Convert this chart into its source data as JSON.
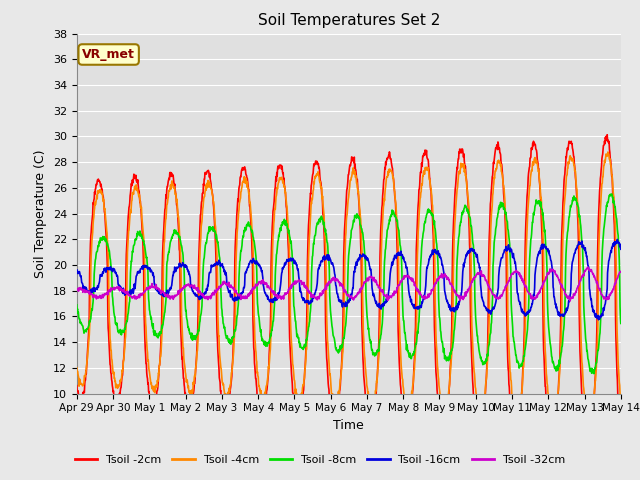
{
  "title": "Soil Temperatures Set 2",
  "xlabel": "Time",
  "ylabel": "Soil Temperature (C)",
  "ylim": [
    10,
    38
  ],
  "yticks": [
    10,
    12,
    14,
    16,
    18,
    20,
    22,
    24,
    26,
    28,
    30,
    32,
    34,
    36,
    38
  ],
  "fig_bg_color": "#e8e8e8",
  "plot_bg_color": "#e0e0e0",
  "grid_color": "#ffffff",
  "annotation_text": "VR_met",
  "annotation_box_color": "#ffffcc",
  "annotation_border_color": "#997700",
  "series": [
    {
      "label": "Tsoil -2cm",
      "color": "#ff0000",
      "lw": 1.2
    },
    {
      "label": "Tsoil -4cm",
      "color": "#ff8800",
      "lw": 1.2
    },
    {
      "label": "Tsoil -8cm",
      "color": "#00dd00",
      "lw": 1.2
    },
    {
      "label": "Tsoil -16cm",
      "color": "#0000dd",
      "lw": 1.2
    },
    {
      "label": "Tsoil -32cm",
      "color": "#cc00cc",
      "lw": 1.2
    }
  ],
  "x_tick_labels": [
    "Apr 29",
    "Apr 30",
    "May 1",
    "May 2",
    "May 3",
    "May 4",
    "May 5",
    "May 6",
    "May 7",
    "May 8",
    "May 9",
    "May 10",
    "May 11",
    "May 12",
    "May 13",
    "May 14"
  ],
  "num_points": 1440,
  "days": 15
}
